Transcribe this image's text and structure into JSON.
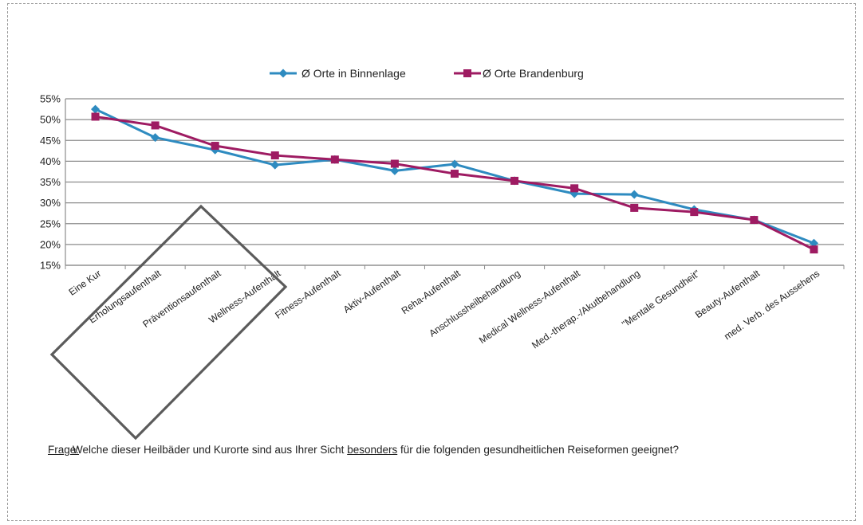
{
  "chart_data": {
    "type": "line",
    "categories": [
      "Eine Kur",
      "Erholungsaufenthalt",
      "Präventionsaufenthalt",
      "Wellness-Aufenthalt",
      "Fitness-Aufenthalt",
      "Aktiv-Aufenthalt",
      "Reha-Aufenthalt",
      "Anschlussheilbehandlung",
      "Medical Wellness-Aufenthalt",
      "Med.-therap.-/Akutbehandlung",
      "\"Mentale Gesundheit\"",
      "Beauty-Aufenthalt",
      "med. Verb. des Aussehens"
    ],
    "series": [
      {
        "name": "Ø Orte in Binnenlage",
        "color": "#2e8bc0",
        "marker": "diamond",
        "values": [
          52.5,
          45.7,
          42.7,
          39.1,
          40.4,
          37.7,
          39.3,
          35.3,
          32.2,
          32.0,
          28.4,
          25.9,
          20.3
        ]
      },
      {
        "name": "Ø Orte Brandenburg",
        "color": "#9e1b62",
        "marker": "square",
        "values": [
          50.7,
          48.6,
          43.7,
          41.4,
          40.4,
          39.4,
          37.0,
          35.3,
          33.5,
          28.8,
          27.8,
          25.9,
          18.8
        ]
      }
    ],
    "ylim": [
      15,
      55
    ],
    "yticks": [
      "15%",
      "20%",
      "25%",
      "30%",
      "35%",
      "40%",
      "45%",
      "50%",
      "55%"
    ],
    "ytick_values": [
      15,
      20,
      25,
      30,
      35,
      40,
      45,
      50,
      55
    ],
    "grid": true,
    "legend_position": "top",
    "highlight_box": "rotated rectangle around Erholungsaufenthalt, Präventionsaufenthalt, Wellness-Aufenthalt"
  },
  "question": {
    "label": "Frage:",
    "before": "Welche dieser Heilbäder und Kurorte sind aus Ihrer Sicht ",
    "underlined": "besonders",
    "after": " für die folgenden gesundheitlichen Reiseformen geeignet?"
  }
}
